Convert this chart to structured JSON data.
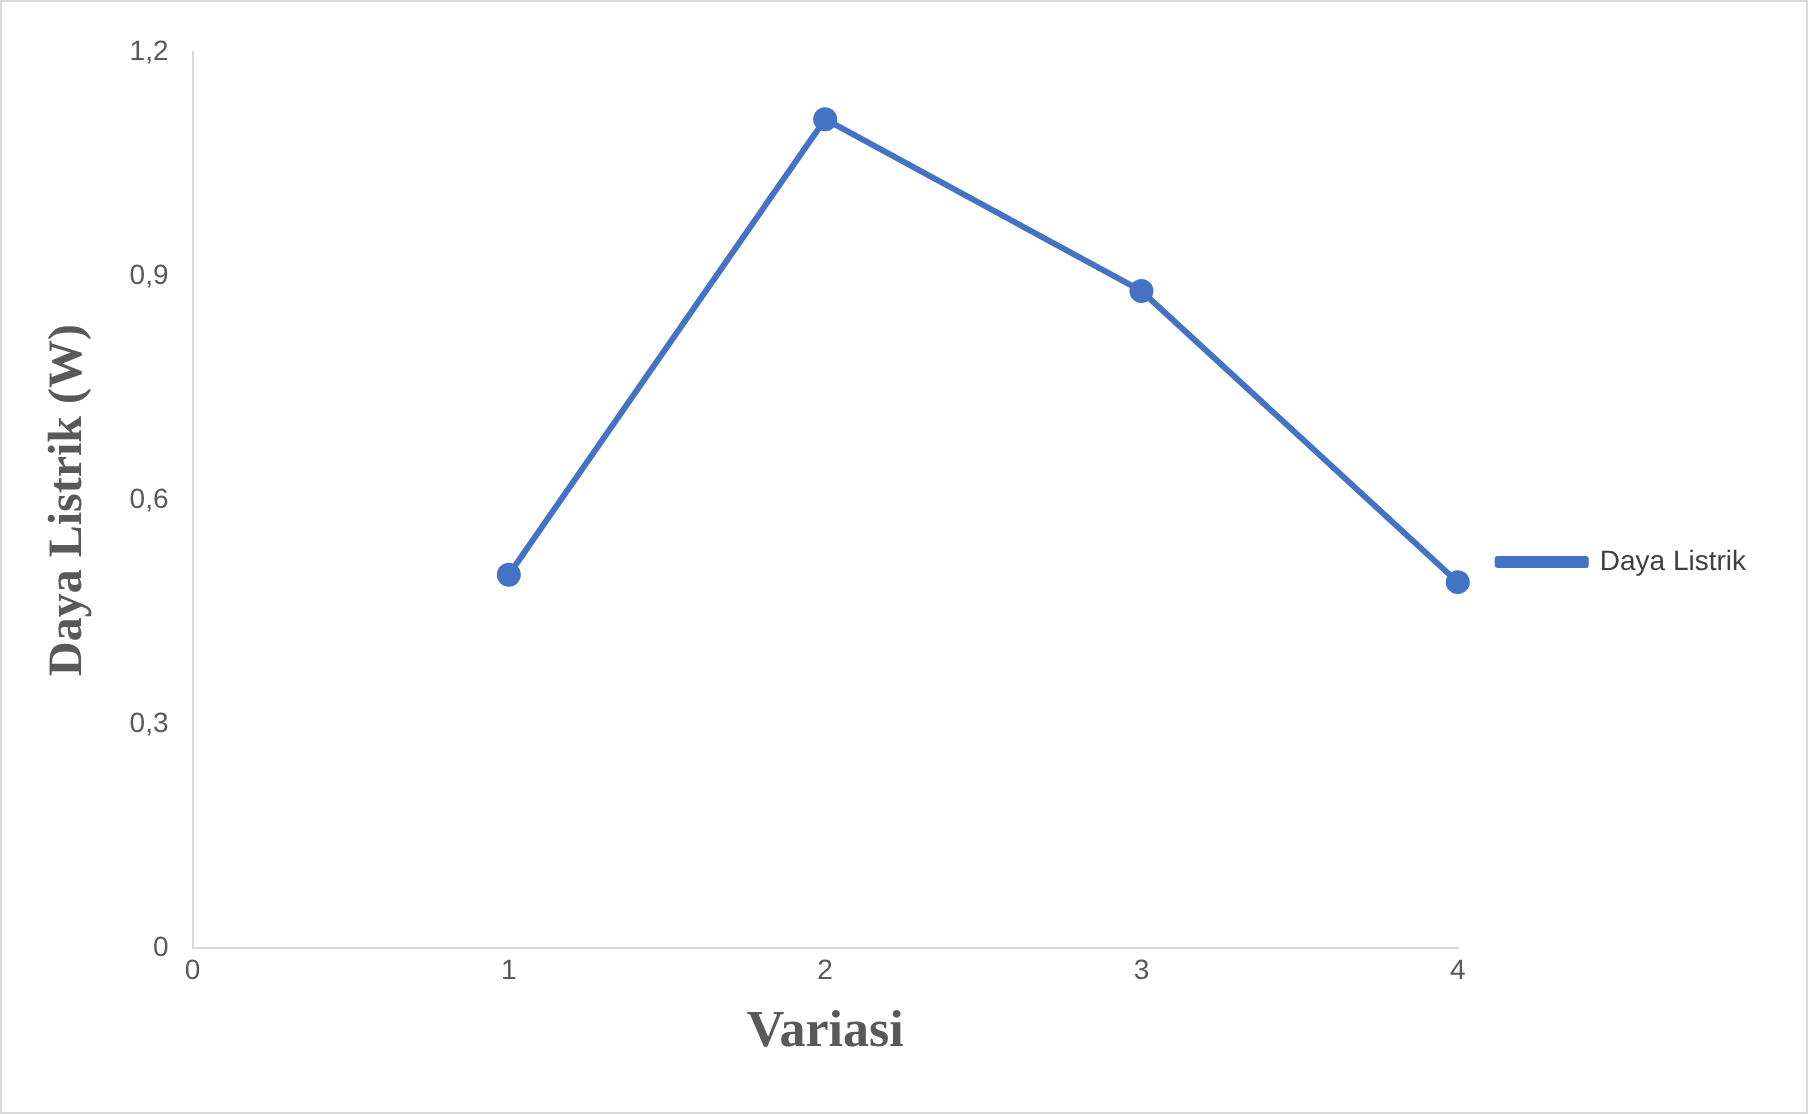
{
  "chart_data": {
    "type": "line",
    "xlabel": "Variasi",
    "ylabel": "Daya Listrik (W)",
    "x": [
      1,
      2,
      3,
      4
    ],
    "series": [
      {
        "name": "Daya Listrik",
        "color": "#4472c4",
        "values": [
          0.5,
          1.11,
          0.88,
          0.49
        ]
      }
    ],
    "xlim": [
      0,
      4
    ],
    "xticks": [
      0,
      1,
      2,
      3,
      4
    ],
    "ylim": [
      0,
      1.2
    ],
    "yticks": [
      0,
      {
        "value": 0.3,
        "label": "0,3"
      },
      {
        "value": 0.6,
        "label": "0,6"
      },
      {
        "value": 0.9,
        "label": "0,9"
      },
      {
        "value": 1.2,
        "label": "1,2"
      }
    ],
    "grid": false,
    "legend": "right",
    "marker": "circle",
    "line_style": "solid"
  }
}
